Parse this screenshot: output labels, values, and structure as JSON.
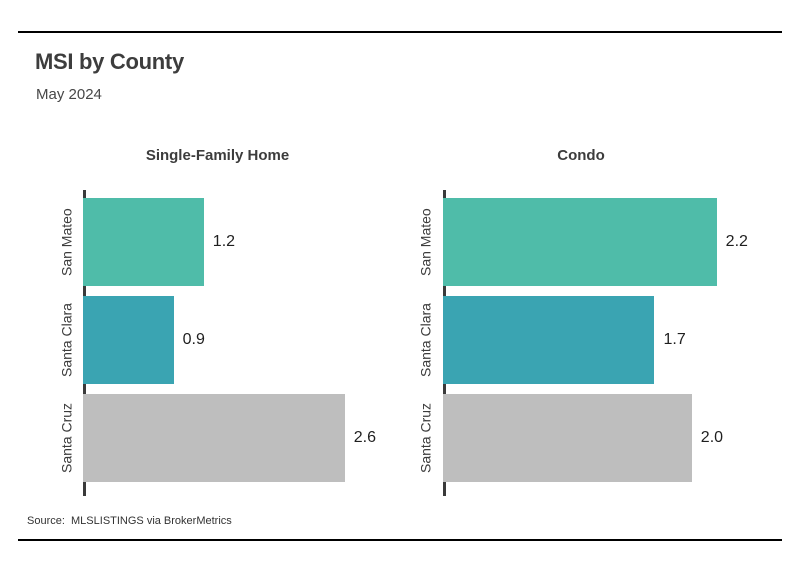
{
  "page": {
    "title": "MSI by County",
    "subtitle": "May 2024",
    "source": "Source:  MLSLISTINGS via BrokerMetrics"
  },
  "colors": {
    "bar_san_mateo": "#4FBCA9",
    "bar_santa_clara": "#3AA4B2",
    "bar_santa_cruz": "#BEBEBE",
    "axis_line": "#3A3A3A",
    "rule_line": "#000000",
    "heading_text": "#3D3D3D",
    "value_text": "#1F1F1F"
  },
  "chart_data": [
    {
      "type": "bar",
      "orientation": "horizontal",
      "title": "Single-Family Home",
      "categories": [
        "San Mateo",
        "Santa Clara",
        "Santa Cruz"
      ],
      "values": [
        1.2,
        0.9,
        2.6
      ],
      "value_labels": [
        "1.2",
        "0.9",
        "2.6"
      ],
      "bar_colors": [
        "#4FBCA9",
        "#3AA4B2",
        "#BEBEBE"
      ],
      "xlim": [
        0,
        3.0
      ],
      "grid": false,
      "legend": false
    },
    {
      "type": "bar",
      "orientation": "horizontal",
      "title": "Condo",
      "categories": [
        "San Mateo",
        "Santa Clara",
        "Santa Cruz"
      ],
      "values": [
        2.2,
        1.7,
        2.0
      ],
      "value_labels": [
        "2.2",
        "1.7",
        "2.0"
      ],
      "bar_colors": [
        "#4FBCA9",
        "#3AA4B2",
        "#BEBEBE"
      ],
      "xlim": [
        0,
        2.5
      ],
      "grid": false,
      "legend": false
    }
  ]
}
